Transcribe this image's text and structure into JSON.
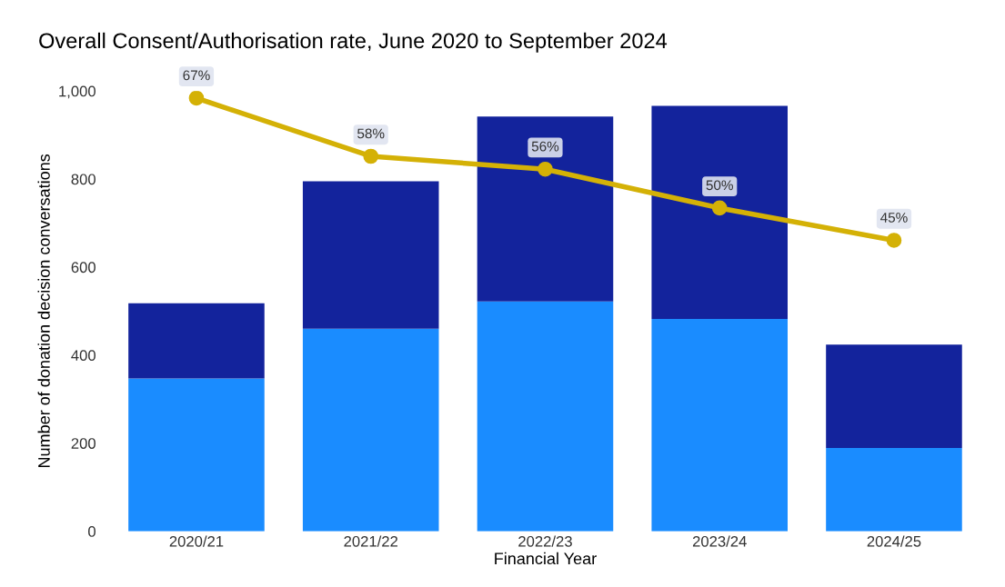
{
  "chart_data": {
    "type": "bar",
    "title": "Overall Consent/Authorisation rate, June 2020 to September 2024",
    "xlabel": "Financial Year",
    "ylabel": "Number of donation decision conversations",
    "categories": [
      "2020/21",
      "2021/22",
      "2022/23",
      "2023/24",
      "2024/25"
    ],
    "stacked": true,
    "series": [
      {
        "color": "#1a8cff",
        "values": [
          347,
          460,
          522,
          482,
          189
        ]
      },
      {
        "color": "#13239c",
        "values": [
          171,
          335,
          420,
          484,
          235
        ]
      },
      {
        "type": "line",
        "axis": "y2",
        "color": "#d4b106",
        "marker": "circle",
        "values": [
          67,
          58,
          56,
          50,
          45
        ],
        "value_labels": [
          "67%",
          "58%",
          "56%",
          "50%",
          "45%"
        ]
      }
    ],
    "ylim": [
      0,
      1000
    ],
    "yticks": [
      0,
      200,
      400,
      600,
      800,
      {
        "value": 1000,
        "label": "1,000"
      }
    ],
    "grid": false,
    "legend": false
  }
}
